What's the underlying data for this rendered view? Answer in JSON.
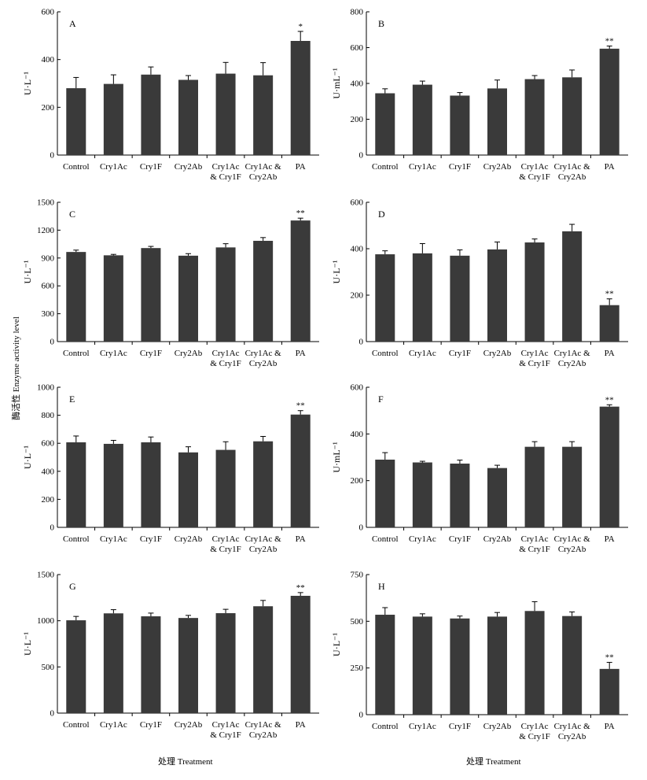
{
  "figure": {
    "shared_ylabel": "酶活性 Enzyme activity level",
    "xlabel_left": "处理 Treatment",
    "xlabel_right": "处理 Treatment"
  },
  "chart_data": [
    {
      "type": "bar",
      "panel": "A",
      "ylabel": "U·L⁻¹",
      "ylim": [
        0,
        600
      ],
      "yticks": [
        0,
        200,
        400,
        600
      ],
      "categories": [
        [
          "Control"
        ],
        [
          "Cry1Ac"
        ],
        [
          "Cry1F"
        ],
        [
          "Cry2Ab"
        ],
        [
          "Cry1Ac",
          "& Cry1F"
        ],
        [
          "Cry1Ac &",
          "Cry2Ab"
        ],
        [
          "PA"
        ]
      ],
      "values": [
        280,
        298,
        337,
        315,
        341,
        334,
        478
      ],
      "errors": [
        45,
        38,
        32,
        18,
        47,
        53,
        40
      ],
      "significance": [
        "",
        "",
        "",
        "",
        "",
        "",
        "*"
      ]
    },
    {
      "type": "bar",
      "panel": "B",
      "ylabel": "U·mL⁻¹",
      "ylim": [
        0,
        800
      ],
      "yticks": [
        0,
        200,
        400,
        600,
        800
      ],
      "categories": [
        [
          "Control"
        ],
        [
          "Cry1Ac"
        ],
        [
          "Cry1F"
        ],
        [
          "Cry2Ab"
        ],
        [
          "Cry1Ac",
          "& Cry1F"
        ],
        [
          "Cry1Ac &",
          "Cry2Ab"
        ],
        [
          "PA"
        ]
      ],
      "values": [
        345,
        393,
        332,
        372,
        424,
        434,
        594
      ],
      "errors": [
        25,
        20,
        17,
        47,
        20,
        41,
        15
      ],
      "significance": [
        "",
        "",
        "",
        "",
        "",
        "",
        "**"
      ]
    },
    {
      "type": "bar",
      "panel": "C",
      "ylabel": "U·L⁻¹",
      "ylim": [
        0,
        1500
      ],
      "yticks": [
        0,
        300,
        600,
        900,
        1200,
        1500
      ],
      "categories": [
        [
          "Control"
        ],
        [
          "Cry1Ac"
        ],
        [
          "Cry1F"
        ],
        [
          "Cry2Ab"
        ],
        [
          "Cry1Ac",
          "& Cry1F"
        ],
        [
          "Cry1Ac &",
          "Cry2Ab"
        ],
        [
          "PA"
        ]
      ],
      "values": [
        965,
        929,
        1007,
        925,
        1014,
        1085,
        1304
      ],
      "errors": [
        20,
        10,
        18,
        22,
        40,
        35,
        25
      ],
      "significance": [
        "",
        "",
        "",
        "",
        "",
        "",
        "**"
      ]
    },
    {
      "type": "bar",
      "panel": "D",
      "ylabel": "U·L⁻¹",
      "ylim": [
        0,
        600
      ],
      "yticks": [
        0,
        200,
        400,
        600
      ],
      "categories": [
        [
          "Control"
        ],
        [
          "Cry1Ac"
        ],
        [
          "Cry1F"
        ],
        [
          "Cry2Ab"
        ],
        [
          "Cry1Ac",
          "& Cry1F"
        ],
        [
          "Cry1Ac &",
          "Cry2Ab"
        ],
        [
          "PA"
        ]
      ],
      "values": [
        376,
        380,
        370,
        397,
        427,
        475,
        157
      ],
      "errors": [
        15,
        42,
        25,
        32,
        15,
        30,
        27
      ],
      "significance": [
        "",
        "",
        "",
        "",
        "",
        "",
        "**"
      ]
    },
    {
      "type": "bar",
      "panel": "E",
      "ylabel": "U·L⁻¹",
      "ylim": [
        0,
        1000
      ],
      "yticks": [
        0,
        200,
        400,
        600,
        800,
        1000
      ],
      "categories": [
        [
          "Control"
        ],
        [
          "Cry1Ac"
        ],
        [
          "Cry1F"
        ],
        [
          "Cry2Ab"
        ],
        [
          "Cry1Ac",
          "& Cry1F"
        ],
        [
          "Cry1Ac &",
          "Cry2Ab"
        ],
        [
          "PA"
        ]
      ],
      "values": [
        607,
        596,
        607,
        535,
        553,
        614,
        805
      ],
      "errors": [
        45,
        25,
        38,
        40,
        58,
        35,
        28
      ],
      "significance": [
        "",
        "",
        "",
        "",
        "",
        "",
        "**"
      ]
    },
    {
      "type": "bar",
      "panel": "F",
      "ylabel": "U·mL⁻¹",
      "ylim": [
        0,
        600
      ],
      "yticks": [
        0,
        200,
        400,
        600
      ],
      "categories": [
        [
          "Control"
        ],
        [
          "Cry1Ac"
        ],
        [
          "Cry1F"
        ],
        [
          "Cry2Ab"
        ],
        [
          "Cry1Ac",
          "& Cry1F"
        ],
        [
          "Cry1Ac &",
          "Cry2Ab"
        ],
        [
          "PA"
        ]
      ],
      "values": [
        290,
        278,
        273,
        254,
        345,
        345,
        517
      ],
      "errors": [
        30,
        5,
        15,
        12,
        22,
        22,
        8
      ],
      "significance": [
        "",
        "",
        "",
        "",
        "",
        "",
        "**"
      ]
    },
    {
      "type": "bar",
      "panel": "G",
      "ylabel": "U·L⁻¹",
      "ylim": [
        0,
        1500
      ],
      "yticks": [
        0,
        500,
        1000,
        1500
      ],
      "categories": [
        [
          "Control"
        ],
        [
          "Cry1Ac"
        ],
        [
          "Cry1F"
        ],
        [
          "Cry2Ab"
        ],
        [
          "Cry1Ac",
          "& Cry1F"
        ],
        [
          "Cry1Ac &",
          "Cry2Ab"
        ],
        [
          "PA"
        ]
      ],
      "values": [
        1005,
        1080,
        1048,
        1030,
        1082,
        1157,
        1270
      ],
      "errors": [
        42,
        40,
        35,
        28,
        42,
        63,
        35
      ],
      "significance": [
        "",
        "",
        "",
        "",
        "",
        "",
        "**"
      ]
    },
    {
      "type": "bar",
      "panel": "H",
      "ylabel": "U·L⁻¹",
      "ylim": [
        0,
        750
      ],
      "yticks": [
        0,
        250,
        500,
        750
      ],
      "categories": [
        [
          "Control"
        ],
        [
          "Cry1Ac"
        ],
        [
          "Cry1F"
        ],
        [
          "Cry2Ab"
        ],
        [
          "Cry1Ac",
          "& Cry1F"
        ],
        [
          "Cry1Ac &",
          "Cry2Ab"
        ],
        [
          "PA"
        ]
      ],
      "values": [
        535,
        525,
        515,
        525,
        555,
        528,
        245
      ],
      "errors": [
        38,
        15,
        13,
        22,
        50,
        22,
        35
      ],
      "significance": [
        "",
        "",
        "",
        "",
        "",
        "",
        "**"
      ]
    }
  ]
}
